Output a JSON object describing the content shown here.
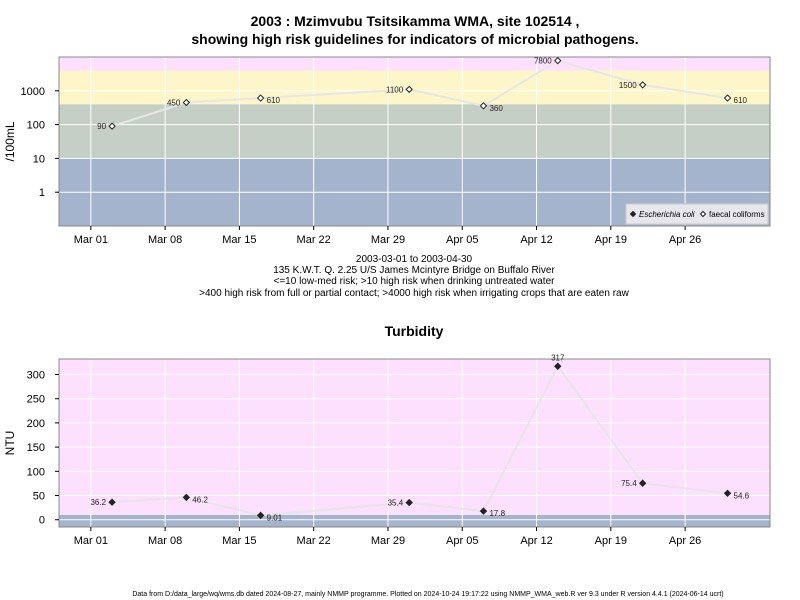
{
  "chart_data": [
    {
      "type": "line",
      "title_line1": "2003 : Mzimvubu Tsitsikamma WMA, site 102514 ,",
      "title_line2": "showing high risk guidelines for indicators of microbial pathogens.",
      "ylabel": "/100mL",
      "yscale": "log",
      "ylim": [
        0.1,
        10000
      ],
      "yticks": [
        1,
        10,
        100,
        1000
      ],
      "ytick_labels": [
        "1",
        "10",
        "100",
        "1000"
      ],
      "xlim": [
        "2003-02-26",
        "2003-05-04"
      ],
      "xticks": [
        "2003-03-01",
        "2003-03-08",
        "2003-03-15",
        "2003-03-22",
        "2003-03-29",
        "2003-04-05",
        "2003-04-12",
        "2003-04-19",
        "2003-04-26"
      ],
      "xtick_labels": [
        "Mar 01",
        "Mar 08",
        "Mar 15",
        "Mar 22",
        "Mar 29",
        "Apr 05",
        "Apr 12",
        "Apr 19",
        "Apr 26"
      ],
      "bands": [
        {
          "from": 0.1,
          "to": 10,
          "color": "#a4b4cc"
        },
        {
          "from": 10,
          "to": 400,
          "color": "#c5cfc5"
        },
        {
          "from": 400,
          "to": 4000,
          "color": "#fdf6c8"
        },
        {
          "from": 4000,
          "to": 10000,
          "color": "#fde0fd"
        }
      ],
      "grid": true,
      "legend_position": "bottom-right",
      "series": [
        {
          "name": "faecal coliforms",
          "marker": "open-diamond",
          "x": [
            "2003-03-03",
            "2003-03-10",
            "2003-03-17",
            "2003-03-31",
            "2003-04-07",
            "2003-04-14",
            "2003-04-22",
            "2003-04-30"
          ],
          "values": [
            90,
            450,
            610,
            1100,
            360,
            7800,
            1500,
            610
          ],
          "labels": [
            "90",
            "450",
            "610",
            "1100",
            "360",
            "7800",
            "1500",
            "610"
          ],
          "label_side": [
            "left",
            "left",
            "right",
            "left",
            "right",
            "left",
            "left",
            "right"
          ]
        }
      ],
      "legend": [
        {
          "name": "Escherichia coli",
          "marker": "filled-diamond"
        },
        {
          "name": "faecal coliforms",
          "marker": "open-diamond"
        }
      ],
      "subtitle_lines": [
        "2003-03-01 to 2003-04-30",
        "135 K.W.T. Q. 2.25 U/S James Mcintyre Bridge on Buffalo River",
        "<=10 low-med risk; >10 high risk when drinking untreated water",
        ">400 high risk from full or partial contact; >4000 high risk when irrigating crops that are eaten raw"
      ]
    },
    {
      "type": "line",
      "title": "Turbidity",
      "ylabel": "NTU",
      "yscale": "linear",
      "ylim": [
        -15,
        332
      ],
      "yticks": [
        0,
        50,
        100,
        150,
        200,
        250,
        300
      ],
      "ytick_labels": [
        "0",
        "50",
        "100",
        "150",
        "200",
        "250",
        "300"
      ],
      "xlim": [
        "2003-02-26",
        "2003-05-04"
      ],
      "xticks": [
        "2003-03-01",
        "2003-03-08",
        "2003-03-15",
        "2003-03-22",
        "2003-03-29",
        "2003-04-05",
        "2003-04-12",
        "2003-04-19",
        "2003-04-26"
      ],
      "xtick_labels": [
        "Mar 01",
        "Mar 08",
        "Mar 15",
        "Mar 22",
        "Mar 29",
        "Apr 05",
        "Apr 12",
        "Apr 19",
        "Apr 26"
      ],
      "bands": [
        {
          "from": -15,
          "to": 10,
          "color": "#a4b4cc"
        },
        {
          "from": 10,
          "to": 332,
          "color": "#fde0fd"
        }
      ],
      "grid": true,
      "series": [
        {
          "marker": "filled-diamond",
          "x": [
            "2003-03-03",
            "2003-03-10",
            "2003-03-17",
            "2003-03-31",
            "2003-04-07",
            "2003-04-14",
            "2003-04-22",
            "2003-04-30"
          ],
          "values": [
            36.2,
            46.2,
            9.01,
            35.4,
            17.8,
            317,
            75.4,
            54.6
          ],
          "labels": [
            "36.2",
            "46.2",
            "9.01",
            "35.4",
            "17.8",
            "317",
            "75.4",
            "54.6"
          ],
          "label_side": [
            "left",
            "right",
            "right",
            "left",
            "right",
            "top",
            "left",
            "right"
          ]
        }
      ]
    }
  ],
  "footer": "Data from D:/data_large/wq/wms.db dated 2024-08-27, mainly NMMP programme. Plotted on 2024-10-24 19:17:22 using NMMP_WMA_web.R ver 9.3 under R version 4.4.1 (2024-06-14 ucrt)"
}
